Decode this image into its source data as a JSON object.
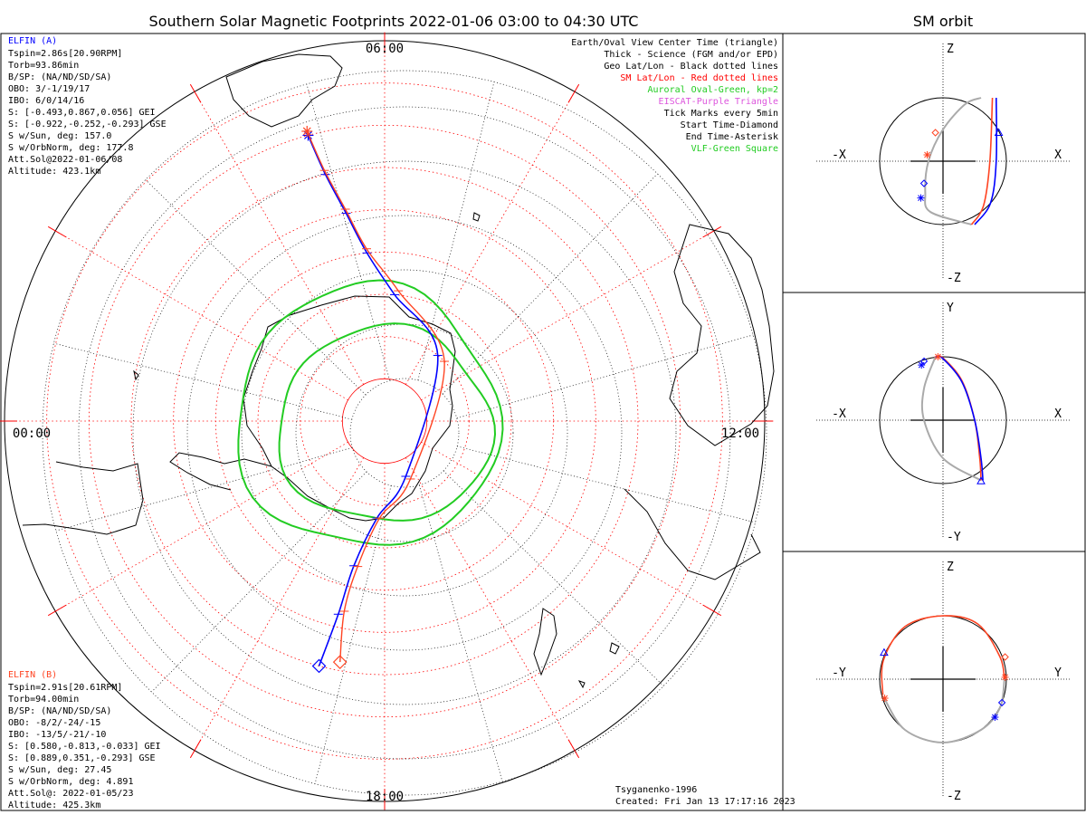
{
  "title": "Southern Solar Magnetic Footprints 2022-01-06 03:00 to 04:30 UTC",
  "orbit_title": "SM orbit",
  "colors": {
    "elfin_a": "#0000ff",
    "elfin_b": "#ff4422",
    "oval": "#22cc22",
    "sm_grid": "#ff0000",
    "geo_grid": "#000000",
    "eiscat": "#dd55dd",
    "orbit_path": "#aaaaaa"
  },
  "mlt_labels": {
    "top": "06:00",
    "left": "00:00",
    "right": "12:00",
    "bottom": "18:00"
  },
  "elfin_a": {
    "name": "ELFIN (A)",
    "lines": [
      "Tspin=2.86s[20.90RPM]",
      "Torb=93.86min",
      "B/SP: (NA/ND/SD/SA)",
      "OBO: 3/-1/19/17",
      "IBO: 6/0/14/16",
      "S: [-0.493,0.867,0.056] GEI",
      "S: [-0.922,-0.252,-0.293] GSE",
      "S w/Sun, deg: 157.0",
      "S w/OrbNorm, deg: 177.8",
      "Att.Sol@2022-01-06/08",
      "Altitude: 423.1km"
    ]
  },
  "elfin_b": {
    "name": "ELFIN (B)",
    "lines": [
      "Tspin=2.91s[20.61RPM]",
      "Torb=94.00min",
      "B/SP: (NA/ND/SD/SA)",
      "OBO: -8/2/-24/-15",
      "IBO: -13/5/-21/-10",
      "S: [0.580,-0.813,-0.033] GEI",
      "S: [0.889,0.351,-0.293] GSE",
      "S w/Sun, deg: 27.45",
      "S w/OrbNorm, deg: 4.891",
      "Att.Sol@: 2022-01-05/23",
      "Altitude: 425.3km"
    ]
  },
  "legend": [
    {
      "text": "Earth/Oval View Center Time (triangle)",
      "color": "#000000"
    },
    {
      "text": "Thick - Science (FGM and/or EPD)",
      "color": "#000000"
    },
    {
      "text": "Geo Lat/Lon - Black dotted lines",
      "color": "#000000"
    },
    {
      "text": "SM Lat/Lon - Red dotted lines",
      "color": "#ff0000"
    },
    {
      "text": "Auroral Oval-Green, kp=2",
      "color": "#22cc22"
    },
    {
      "text": "EISCAT-Purple Triangle",
      "color": "#dd55dd"
    },
    {
      "text": "Tick Marks every 5min",
      "color": "#000000"
    },
    {
      "text": "Start Time-Diamond",
      "color": "#000000"
    },
    {
      "text": "End Time-Asterisk",
      "color": "#000000"
    },
    {
      "text": "VLF-Green Square",
      "color": "#22cc22"
    }
  ],
  "footer": {
    "model": "Tsyganenko-1996",
    "created": "Created: Fri Jan 13 17:17:16 2023"
  },
  "panels": [
    {
      "up": "Z",
      "down": "-Z",
      "left": "-X",
      "right": "X"
    },
    {
      "up": "Y",
      "down": "-Y",
      "left": "-X",
      "right": "X"
    },
    {
      "up": "Z",
      "down": "-Z",
      "left": "-Y",
      "right": "Y"
    }
  ],
  "chart_data": {
    "type": "scatter",
    "projection": "south polar, SM coordinates",
    "sm_latitude_rings_deg": [
      -80,
      -70,
      -60,
      -50,
      -40,
      -30,
      -20,
      -10
    ],
    "mlt_spokes_hours": [
      0,
      2,
      4,
      6,
      8,
      10,
      12,
      14,
      16,
      18,
      20,
      22
    ],
    "series": [
      {
        "name": "ELFIN (A)",
        "color": "#0000ff",
        "footprint": [
          [
            5.0,
            -20
          ],
          [
            5.1,
            -30
          ],
          [
            5.3,
            -40
          ],
          [
            5.6,
            -50
          ],
          [
            6.3,
            -60
          ],
          [
            8.6,
            -70
          ],
          [
            16.6,
            -76
          ],
          [
            18.3,
            -67
          ],
          [
            18.8,
            -55
          ],
          [
            18.9,
            -43
          ],
          [
            19.0,
            -30
          ]
        ]
      },
      {
        "name": "ELFIN (B)",
        "color": "#ff4422",
        "footprint": [
          [
            5.0,
            -19
          ],
          [
            5.1,
            -29
          ],
          [
            5.3,
            -39
          ],
          [
            5.6,
            -49
          ],
          [
            6.4,
            -59
          ],
          [
            9.0,
            -70
          ],
          [
            16.4,
            -75
          ],
          [
            18.2,
            -67
          ],
          [
            18.7,
            -55
          ],
          [
            18.8,
            -44
          ],
          [
            18.7,
            -32
          ]
        ]
      }
    ],
    "auroral_oval": {
      "kp": 2,
      "equatorward_colat_deg": 31,
      "poleward_colat_deg": 22
    },
    "orbit_panels": {
      "xz": {
        "elfin_a": [
          [
            0.84,
            1.0
          ],
          [
            0.84,
            0.0
          ],
          [
            0.75,
            -0.66
          ],
          [
            0.5,
            -1.0
          ]
        ],
        "elfin_b": [
          [
            0.78,
            1.0
          ],
          [
            0.74,
            0.0
          ],
          [
            0.64,
            -0.7
          ],
          [
            0.45,
            -1.0
          ]
        ],
        "grey": [
          [
            0.6,
            1.0
          ],
          [
            0.35,
            0.9
          ],
          [
            0.0,
            0.5
          ],
          [
            -0.23,
            0.0
          ],
          [
            -0.28,
            -0.5
          ],
          [
            -0.2,
            -0.8
          ],
          [
            0.45,
            -1.0
          ]
        ]
      },
      "xy": {
        "elfin_a": [
          [
            -0.12,
            1.0
          ],
          [
            0.0,
            0.97
          ],
          [
            0.3,
            0.6
          ],
          [
            0.5,
            0.0
          ],
          [
            0.6,
            -0.6
          ],
          [
            0.63,
            -0.95
          ]
        ],
        "elfin_b": [
          [
            -0.12,
            1.0
          ],
          [
            0.0,
            0.98
          ],
          [
            0.3,
            0.62
          ],
          [
            0.5,
            0.0
          ],
          [
            0.58,
            -0.6
          ],
          [
            0.6,
            -0.95
          ]
        ],
        "grey": [
          [
            -0.12,
            1.0
          ],
          [
            -0.3,
            0.5
          ],
          [
            -0.3,
            0.0
          ],
          [
            0.0,
            -0.6
          ],
          [
            0.6,
            -0.95
          ]
        ]
      },
      "yz": {
        "elfin_b": [
          [
            -0.95,
            -0.25
          ],
          [
            -0.94,
            0.3
          ],
          [
            -0.6,
            0.83
          ],
          [
            0.0,
            1.0
          ],
          [
            0.55,
            0.87
          ],
          [
            0.9,
            0.35
          ],
          [
            0.97,
            0.0
          ]
        ],
        "grey": [
          [
            0.97,
            0.0
          ],
          [
            0.9,
            -0.45
          ],
          [
            0.6,
            -0.8
          ],
          [
            0.0,
            -1.0
          ],
          [
            -0.6,
            -0.8
          ],
          [
            -0.93,
            -0.3
          ]
        ]
      }
    }
  }
}
